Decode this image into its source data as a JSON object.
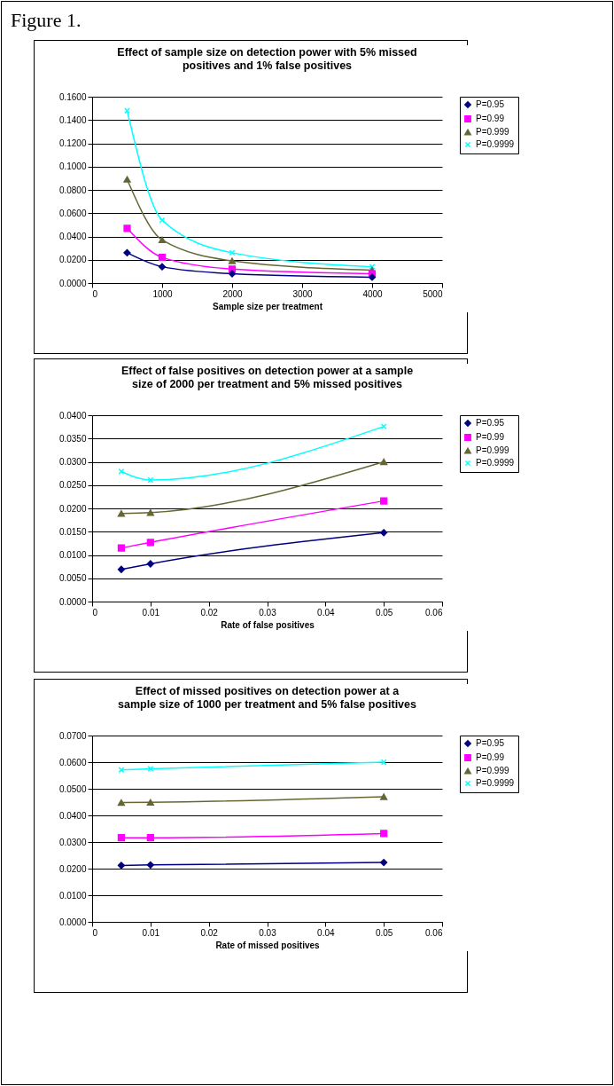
{
  "chart_data": [
    {
      "type": "line",
      "title": "Effect of sample size on detection power with 5% missed positives and 1% false positives",
      "xlabel": "Sample size per treatment",
      "annotations": [
        "Figure 1."
      ],
      "x": [
        500,
        1000,
        2000,
        4000
      ],
      "series": [
        {
          "name": "P=0.95",
          "color": "#000080",
          "marker": "diamond",
          "values": [
            0.026,
            0.014,
            0.008,
            0.005
          ]
        },
        {
          "name": "P=0.99",
          "color": "#ff00ff",
          "marker": "square",
          "values": [
            0.047,
            0.022,
            0.012,
            0.008
          ]
        },
        {
          "name": "P=0.999",
          "color": "#666633",
          "marker": "triangle",
          "values": [
            0.089,
            0.037,
            0.019,
            0.011
          ]
        },
        {
          "name": "P=0.9999",
          "color": "#00ffff",
          "marker": "cross",
          "values": [
            0.148,
            0.054,
            0.026,
            0.014
          ]
        }
      ],
      "xlim": [
        0,
        5000
      ],
      "xticks": [
        0,
        1000,
        2000,
        3000,
        4000,
        5000
      ],
      "ylim": [
        0,
        0.16
      ],
      "yticks": [
        {
          "value": 0,
          "label": "0.0000"
        },
        {
          "value": 0.02,
          "label": "0.0200"
        },
        {
          "value": 0.04,
          "label": "0.0400"
        },
        {
          "value": 0.06,
          "label": "0.0600"
        },
        {
          "value": 0.08,
          "label": "0.0800"
        },
        {
          "value": 0.1,
          "label": "0.1000"
        },
        {
          "value": 0.12,
          "label": "0.1200"
        },
        {
          "value": 0.14,
          "label": "0.1400"
        },
        {
          "value": 0.16,
          "label": "0.1600"
        }
      ],
      "grid": "y",
      "legend": "right"
    },
    {
      "type": "line",
      "title": "Effect of false positives on detection power at a sample size of 2000 per treatment and 5% missed positives",
      "xlabel": "Rate of false positives",
      "x": [
        0.005,
        0.01,
        0.05
      ],
      "series": [
        {
          "name": "P=0.95",
          "color": "#000080",
          "marker": "diamond",
          "values": [
            0.0069,
            0.0081,
            0.0148
          ]
        },
        {
          "name": "P=0.99",
          "color": "#ff00ff",
          "marker": "square",
          "values": [
            0.0115,
            0.0127,
            0.0216
          ]
        },
        {
          "name": "P=0.999",
          "color": "#666633",
          "marker": "triangle",
          "values": [
            0.0189,
            0.0191,
            0.03
          ]
        },
        {
          "name": "P=0.9999",
          "color": "#00ffff",
          "marker": "cross",
          "values": [
            0.0279,
            0.0261,
            0.0376
          ]
        }
      ],
      "xlim": [
        0,
        0.06
      ],
      "xticks": [
        0,
        0.01,
        0.02,
        0.03,
        0.04,
        0.05,
        0.06
      ],
      "ylim": [
        0,
        0.04
      ],
      "yticks": [
        {
          "value": 0,
          "label": "0.0000"
        },
        {
          "value": 0.005,
          "label": "0.0050"
        },
        {
          "value": 0.01,
          "label": "0.0100"
        },
        {
          "value": 0.015,
          "label": "0.0150"
        },
        {
          "value": 0.02,
          "label": "0.0200"
        },
        {
          "value": 0.025,
          "label": "0.0250"
        },
        {
          "value": 0.03,
          "label": "0.0300"
        },
        {
          "value": 0.035,
          "label": "0.0350"
        },
        {
          "value": 0.04,
          "label": "0.0400"
        }
      ],
      "grid": "y",
      "legend": "right"
    },
    {
      "type": "line",
      "title": "Effect of missed positives on detection power at a sample size of 1000 per treatment and 5% false positives",
      "xlabel": "Rate of missed positives",
      "x": [
        0.005,
        0.01,
        0.05
      ],
      "series": [
        {
          "name": "P=0.95",
          "color": "#000080",
          "marker": "diamond",
          "values": [
            0.0212,
            0.0214,
            0.0223
          ]
        },
        {
          "name": "P=0.99",
          "color": "#ff00ff",
          "marker": "square",
          "values": [
            0.0316,
            0.0316,
            0.0332
          ]
        },
        {
          "name": "P=0.999",
          "color": "#666633",
          "marker": "triangle",
          "values": [
            0.0448,
            0.0449,
            0.047
          ]
        },
        {
          "name": "P=0.9999",
          "color": "#00ffff",
          "marker": "cross",
          "values": [
            0.0571,
            0.0575,
            0.06
          ]
        }
      ],
      "xlim": [
        0,
        0.06
      ],
      "xticks": [
        0,
        0.01,
        0.02,
        0.03,
        0.04,
        0.05,
        0.06
      ],
      "ylim": [
        0,
        0.07
      ],
      "yticks": [
        {
          "value": 0,
          "label": "0.0000"
        },
        {
          "value": 0.01,
          "label": "0.0100"
        },
        {
          "value": 0.02,
          "label": "0.0200"
        },
        {
          "value": 0.03,
          "label": "0.0300"
        },
        {
          "value": 0.04,
          "label": "0.0400"
        },
        {
          "value": 0.05,
          "label": "0.0500"
        },
        {
          "value": 0.06,
          "label": "0.0600"
        },
        {
          "value": 0.07,
          "label": "0.0700"
        }
      ],
      "grid": "y",
      "legend": "right"
    }
  ]
}
